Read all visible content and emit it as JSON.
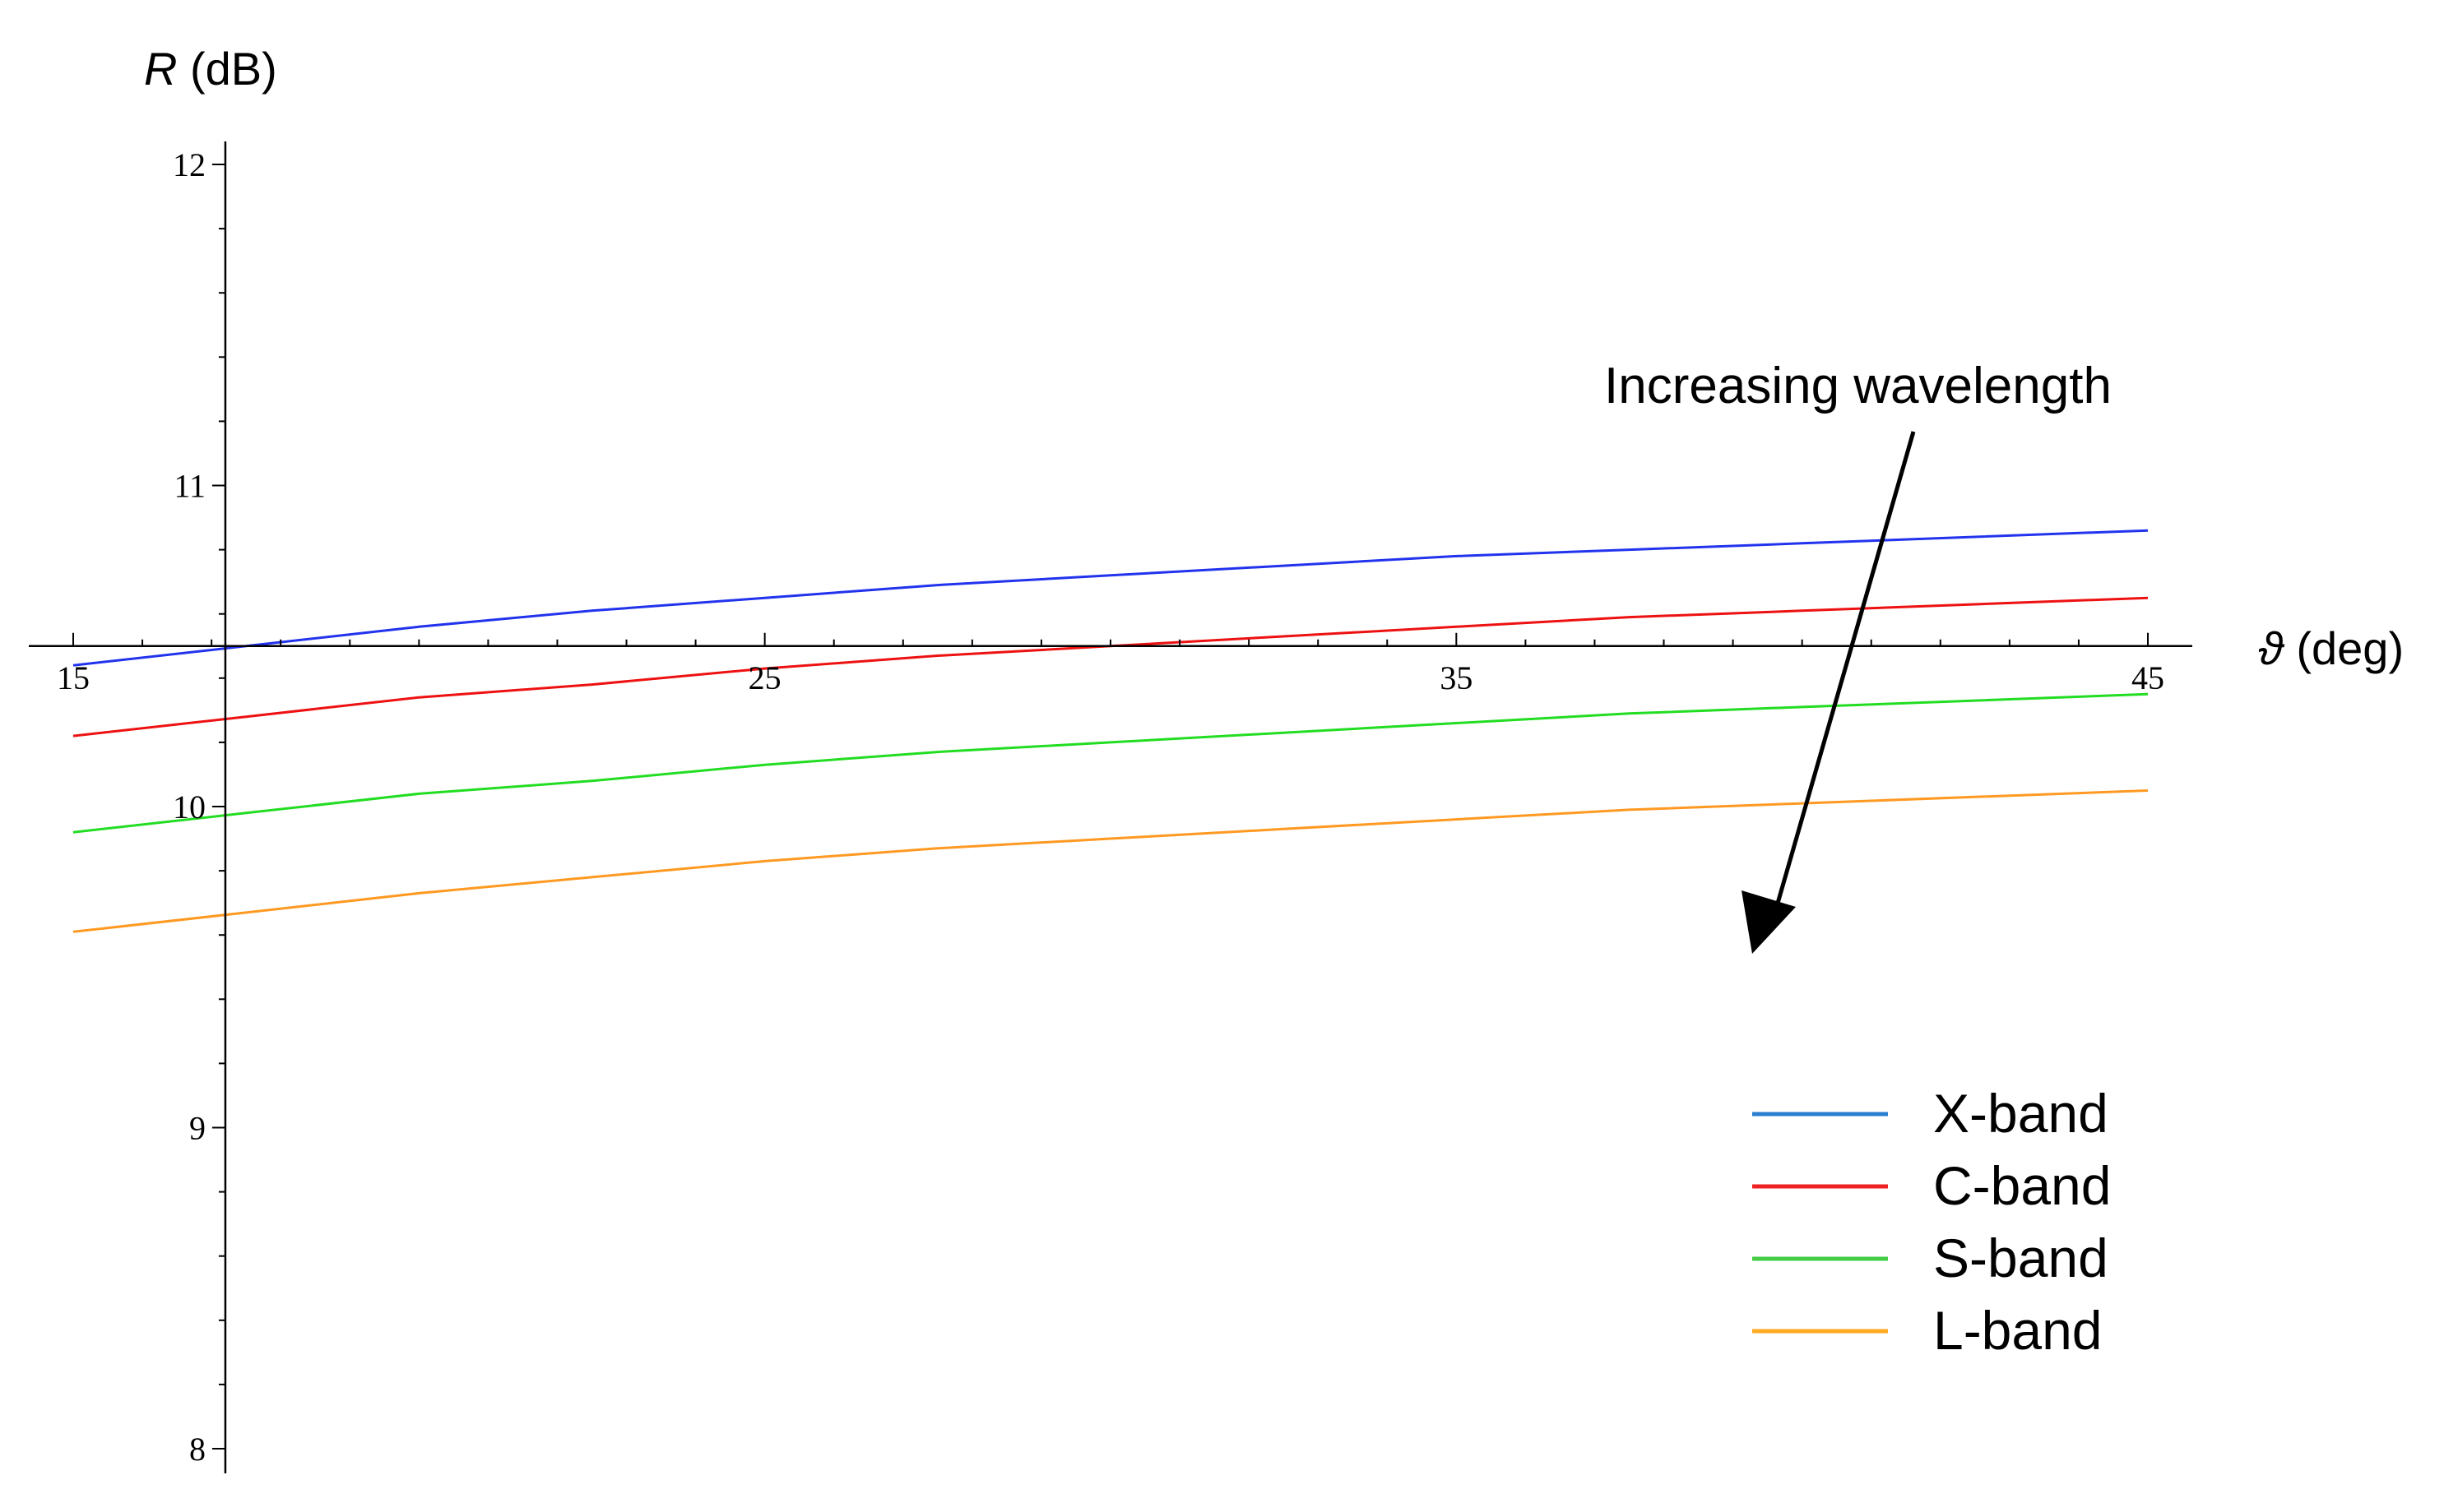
{
  "chart_data": {
    "type": "line",
    "xlabel_var": "ϑ",
    "xlabel_unit": " (deg)",
    "ylabel_var": "R",
    "ylabel_unit": " (dB)",
    "xlim": [
      15,
      45
    ],
    "ylim": [
      8,
      12
    ],
    "x_axis_crosses_y": 10.5,
    "y_axis_crosses_x": 17.2,
    "x_ticks": [
      15,
      25,
      35,
      45
    ],
    "y_ticks": [
      8,
      9,
      10,
      11,
      12
    ],
    "x": [
      15,
      17.5,
      20,
      22.5,
      25,
      27.5,
      30,
      32.5,
      35,
      37.5,
      40,
      42.5,
      45
    ],
    "series": [
      {
        "name": "X-band",
        "color": "#2233ee",
        "legend_color": "#2a7fd0",
        "values": [
          10.44,
          10.5,
          10.56,
          10.61,
          10.65,
          10.69,
          10.72,
          10.75,
          10.78,
          10.8,
          10.82,
          10.84,
          10.86
        ]
      },
      {
        "name": "C-band",
        "color": "#ee1111",
        "legend_color": "#ee2222",
        "values": [
          10.22,
          10.28,
          10.34,
          10.38,
          10.43,
          10.47,
          10.5,
          10.53,
          10.56,
          10.59,
          10.61,
          10.63,
          10.65
        ]
      },
      {
        "name": "S-band",
        "color": "#22dd22",
        "legend_color": "#44cc44",
        "values": [
          9.92,
          9.98,
          10.04,
          10.08,
          10.13,
          10.17,
          10.2,
          10.23,
          10.26,
          10.29,
          10.31,
          10.33,
          10.35
        ]
      },
      {
        "name": "L-band",
        "color": "#ff9922",
        "legend_color": "#ffaa22",
        "values": [
          9.61,
          9.67,
          9.73,
          9.78,
          9.83,
          9.87,
          9.9,
          9.93,
          9.96,
          9.99,
          10.01,
          10.03,
          10.05
        ]
      }
    ],
    "annotation": "Increasing wavelength",
    "legend_position": "bottom-right"
  }
}
